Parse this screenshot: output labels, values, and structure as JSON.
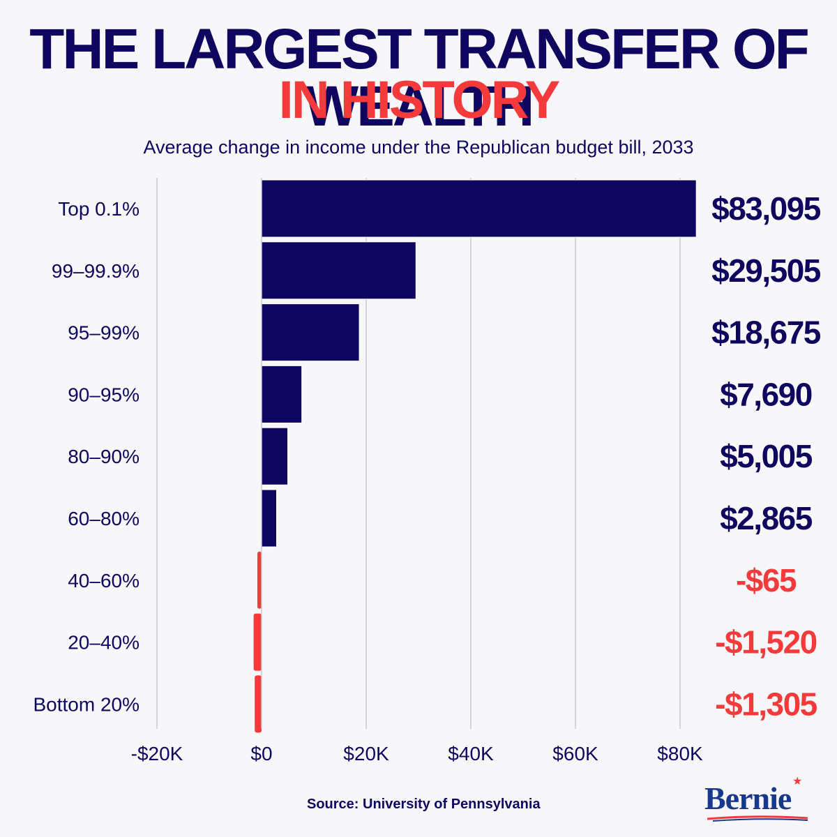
{
  "header": {
    "title_line1": "THE LARGEST TRANSFER OF WEALTH",
    "title_line2": "IN HISTORY",
    "subtitle": "Average change in income under the Republican budget bill, 2033"
  },
  "chart_data": {
    "type": "bar",
    "orientation": "horizontal",
    "categories": [
      "Top 0.1%",
      "99–99.9%",
      "95–99%",
      "90–95%",
      "80–90%",
      "60–80%",
      "40–60%",
      "20–40%",
      "Bottom 20%"
    ],
    "values": [
      83095,
      29505,
      18675,
      7690,
      5005,
      2865,
      -65,
      -1520,
      -1305
    ],
    "value_labels": [
      "$83,095",
      "$29,505",
      "$18,675",
      "$7,690",
      "$5,005",
      "$2,865",
      "-$65",
      "-$1,520",
      "-$1,305"
    ],
    "x_ticks": [
      -20000,
      0,
      20000,
      40000,
      60000,
      80000
    ],
    "x_tick_labels": [
      "-$20K",
      "$0",
      "$20K",
      "$40K",
      "$60K",
      "$80K"
    ],
    "xlim": [
      -20000,
      83095
    ],
    "grid": "vertical",
    "colors": {
      "positive": "#0f0660",
      "negative": "#f43a3a",
      "grid": "#c9c8d4",
      "text": "#0f0660"
    }
  },
  "footer": {
    "source": "Source: University of Pennsylvania",
    "logo_text": "Bernie",
    "logo_icon": "star-icon"
  }
}
